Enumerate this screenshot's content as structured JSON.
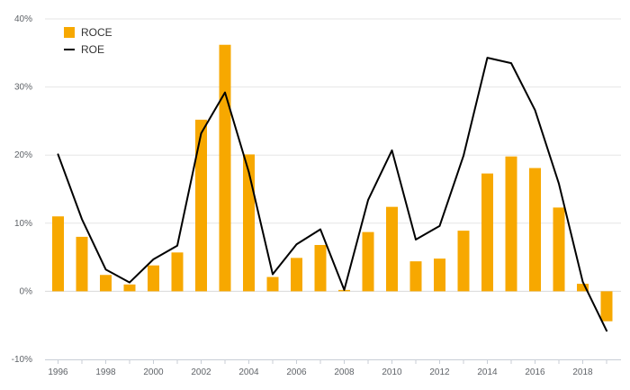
{
  "chart_data": {
    "type": "bar",
    "x": [
      1996,
      1997,
      1998,
      1999,
      2000,
      2001,
      2002,
      2003,
      2004,
      2005,
      2006,
      2007,
      2008,
      2009,
      2010,
      2011,
      2012,
      2013,
      2014,
      2015,
      2016,
      2017,
      2018,
      2019
    ],
    "x_tick_labels": [
      "1996",
      "1998",
      "2000",
      "2002",
      "2004",
      "2006",
      "2008",
      "2010",
      "2012",
      "2014",
      "2016",
      "2018"
    ],
    "y_ticks": [
      -10,
      0,
      10,
      20,
      30,
      40
    ],
    "y_tick_labels": [
      "-10%",
      "0%",
      "10%",
      "20%",
      "30%",
      "40%"
    ],
    "ylim": [
      -10,
      40
    ],
    "grid": true,
    "legend_position": "top-left",
    "series": [
      {
        "name": "ROCE",
        "type": "bar",
        "color": "#f7a800",
        "values": [
          11.0,
          8.0,
          2.4,
          1.0,
          3.8,
          5.7,
          25.2,
          36.2,
          20.1,
          2.1,
          4.9,
          6.8,
          0.2,
          8.7,
          12.4,
          4.4,
          4.8,
          8.9,
          17.3,
          19.8,
          18.1,
          12.3,
          1.1,
          -4.4
        ]
      },
      {
        "name": "ROE",
        "type": "line",
        "color": "#000000",
        "values": [
          20.1,
          10.6,
          3.2,
          1.3,
          4.7,
          6.7,
          23.2,
          29.2,
          17.5,
          2.5,
          6.9,
          9.1,
          0.2,
          13.4,
          20.7,
          7.6,
          9.6,
          19.9,
          34.3,
          33.5,
          26.6,
          15.8,
          1.4,
          -5.8
        ]
      }
    ]
  }
}
